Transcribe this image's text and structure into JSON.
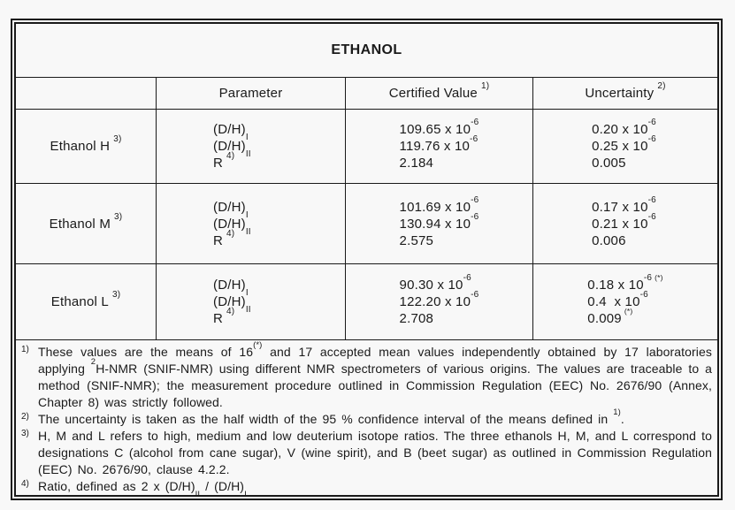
{
  "title": "ETHANOL",
  "table": {
    "header": {
      "parameter": "Parameter",
      "certified": "Certified Value",
      "certified_sup": "1)",
      "uncertainty": "Uncertainty",
      "uncertainty_sup": "2)"
    },
    "rows": [
      {
        "label": "Ethanol H",
        "label_sup": "3)",
        "params": [
          {
            "base": "(D/H)",
            "sub": "I"
          },
          {
            "base": "(D/H)",
            "sub": "II"
          },
          {
            "base": "R",
            "sup": "4)"
          }
        ],
        "certified": [
          {
            "base": "109.65 x 10",
            "exp": "-6"
          },
          {
            "base": "119.76 x 10",
            "exp": "-6"
          },
          {
            "base": "2.184"
          }
        ],
        "uncertainty": [
          {
            "base": "0.20 x 10",
            "exp": "-6"
          },
          {
            "base": "0.25 x 10",
            "exp": "-6"
          },
          {
            "base": "0.005"
          }
        ]
      },
      {
        "label": "Ethanol M",
        "label_sup": "3)",
        "params": [
          {
            "base": "(D/H)",
            "sub": "I"
          },
          {
            "base": "(D/H)",
            "sub": "II"
          },
          {
            "base": "R",
            "sup": "4)"
          }
        ],
        "certified": [
          {
            "base": "101.69 x 10",
            "exp": "-6"
          },
          {
            "base": "130.94 x 10",
            "exp": "-6"
          },
          {
            "base": "2.575"
          }
        ],
        "uncertainty": [
          {
            "base": "0.17 x 10",
            "exp": "-6"
          },
          {
            "base": "0.21 x 10",
            "exp": "-6"
          },
          {
            "base": "0.006"
          }
        ]
      },
      {
        "label": "Ethanol L",
        "label_sup": "3)",
        "params": [
          {
            "base": "(D/H)",
            "sub": "I"
          },
          {
            "base": "(D/H)",
            "sub": "II"
          },
          {
            "base": "R",
            "sup": "4)"
          }
        ],
        "certified": [
          {
            "base": "90.30 x 10",
            "exp": "-6"
          },
          {
            "base": "122.20 x 10",
            "exp": "-6"
          },
          {
            "base": "2.708"
          }
        ],
        "uncertainty": [
          {
            "base": "0.18 x 10",
            "exp": "-6",
            "note": "(*)"
          },
          {
            "base": "0.4  x 10",
            "exp": "-6"
          },
          {
            "base": "0.009",
            "note": "(*)"
          }
        ]
      }
    ]
  },
  "footnotes": [
    {
      "marker": "1)",
      "seg0": "These values are the means of 16",
      "sup0": "(*)",
      "seg1": " and 17 accepted mean values independently obtained by 17 laboratories applying ",
      "sup1": "2",
      "seg2": "H-NMR (SNIF-NMR) using different NMR spectrometers of various origins. The values are traceable to a method (SNIF-NMR); the measurement procedure outlined in Commission Regulation (EEC) No. 2676/90 (Annex, Chapter 8) was strictly followed."
    },
    {
      "marker": "2)",
      "seg0": "The uncertainty is taken as the half width of the 95 % confidence interval of the means defined in ",
      "sup0": "1)",
      "seg1": "."
    },
    {
      "marker": "3)",
      "seg0": "H, M and L refers to high, medium and low deuterium isotope ratios. The three ethanols H, M, and L correspond to designations C (alcohol from cane sugar), V (wine spirit), and B (beet sugar) as outlined in Commission Regulation (EEC) No. 2676/90, clause 4.2.2."
    },
    {
      "marker": "4)",
      "seg0": "Ratio, defined as 2 x (D/H)",
      "sub0": "II",
      "seg1": " / (D/H)",
      "sub1": "I"
    }
  ]
}
